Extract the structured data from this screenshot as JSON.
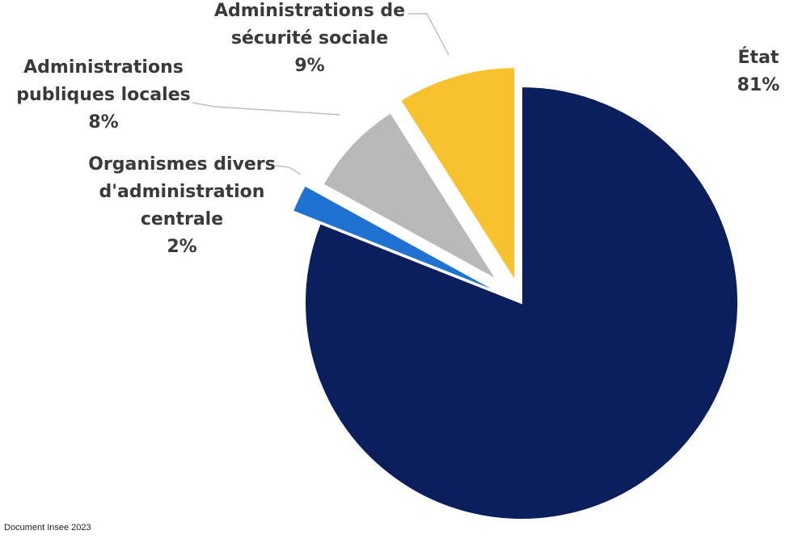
{
  "chart_data": {
    "type": "pie",
    "title": "",
    "slices": [
      {
        "label_lines": [
          "État"
        ],
        "value_label": "81%",
        "value": 81,
        "color": "#0b1f5c"
      },
      {
        "label_lines": [
          "Organismes divers",
          "d'administration",
          "centrale"
        ],
        "value_label": "2%",
        "value": 2,
        "color": "#1f72d1"
      },
      {
        "label_lines": [
          "Administrations",
          "publiques locales"
        ],
        "value_label": "8%",
        "value": 8,
        "color": "#b9b9b9"
      },
      {
        "label_lines": [
          "Administrations de",
          "sécurité sociale"
        ],
        "value_label": "9%",
        "value": 9,
        "color": "#f8c22e"
      }
    ],
    "exploded": [
      "Organismes divers d'administration centrale",
      "Administrations publiques locales",
      "Administrations de sécurité sociale"
    ],
    "start": "12 o'clock",
    "direction": "clockwise"
  },
  "source": "Document Insee 2023"
}
